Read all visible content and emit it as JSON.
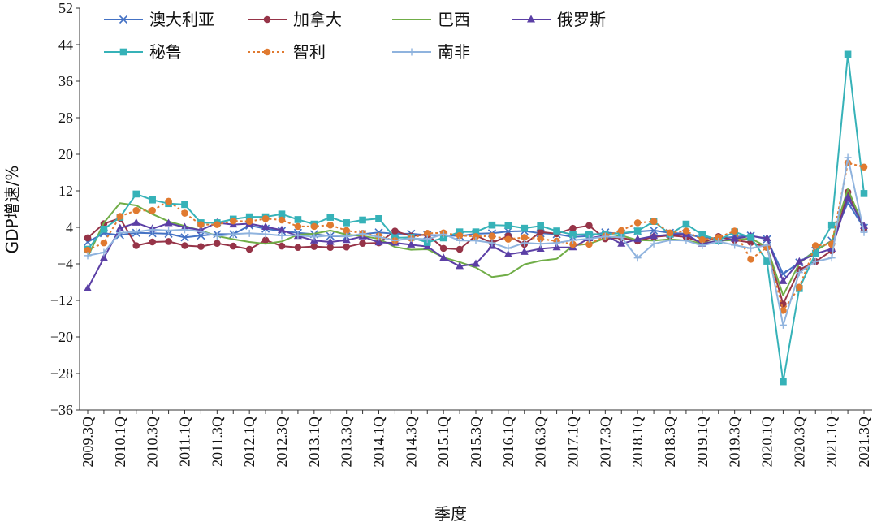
{
  "chart_data": {
    "type": "line",
    "title": "",
    "xlabel": "季度",
    "ylabel": "GDP增速/%",
    "ylim": [
      -36,
      52
    ],
    "yticks": [
      52,
      44,
      36,
      28,
      20,
      12,
      4,
      -4,
      -12,
      -20,
      -28,
      -36
    ],
    "ytick_labels": [
      "52",
      "44",
      "36",
      "28",
      "20",
      "12",
      "4",
      "−4",
      "−12",
      "−20",
      "−28",
      "−36"
    ],
    "x": [
      "2009.3Q",
      "2009.4Q",
      "2010.1Q",
      "2010.2Q",
      "2010.3Q",
      "2010.4Q",
      "2011.1Q",
      "2011.2Q",
      "2011.3Q",
      "2011.4Q",
      "2012.1Q",
      "2012.2Q",
      "2012.3Q",
      "2012.4Q",
      "2013.1Q",
      "2013.2Q",
      "2013.3Q",
      "2013.4Q",
      "2014.1Q",
      "2014.2Q",
      "2014.3Q",
      "2014.4Q",
      "2015.1Q",
      "2015.2Q",
      "2015.3Q",
      "2015.4Q",
      "2016.1Q",
      "2016.2Q",
      "2016.3Q",
      "2016.4Q",
      "2017.1Q",
      "2017.2Q",
      "2017.3Q",
      "2017.4Q",
      "2018.1Q",
      "2018.2Q",
      "2018.3Q",
      "2018.4Q",
      "2019.1Q",
      "2019.2Q",
      "2019.3Q",
      "2019.4Q",
      "2020.1Q",
      "2020.2Q",
      "2020.3Q",
      "2020.4Q",
      "2021.1Q",
      "2021.2Q",
      "2021.3Q"
    ],
    "xtick_labels": [
      "2009.3Q",
      "2010.1Q",
      "2010.3Q",
      "2011.1Q",
      "2011.3Q",
      "2012.1Q",
      "2012.3Q",
      "2013.1Q",
      "2013.3Q",
      "2014.1Q",
      "2014.3Q",
      "2015.1Q",
      "2015.3Q",
      "2016.1Q",
      "2016.3Q",
      "2017.1Q",
      "2017.3Q",
      "2018.1Q",
      "2018.3Q",
      "2019.1Q",
      "2019.3Q",
      "2020.1Q",
      "2020.3Q",
      "2021.1Q",
      "2021.3Q"
    ],
    "legend": {
      "placement": "top-left",
      "columns": 4
    },
    "grid": false,
    "series": [
      {
        "name": "澳大利亚",
        "color": "#4472c4",
        "marker": "x",
        "dash": "solid",
        "values": [
          0.8,
          2.7,
          2.3,
          2.8,
          2.7,
          2.6,
          1.8,
          2.2,
          2.5,
          2.5,
          4.4,
          3.7,
          3.2,
          2.8,
          2.5,
          2.1,
          2.0,
          2.5,
          2.9,
          2.6,
          2.6,
          2.3,
          2.3,
          2.1,
          2.6,
          2.7,
          3.1,
          3.2,
          2.7,
          2.5,
          1.9,
          2.1,
          2.9,
          2.6,
          3.1,
          3.3,
          2.8,
          2.6,
          1.7,
          1.6,
          1.9,
          2.2,
          1.4,
          -6.2,
          -3.7,
          -1.1,
          1.1,
          9.4,
          3.9
        ]
      },
      {
        "name": "加拿大",
        "color": "#963448",
        "marker": "circle",
        "dash": "solid",
        "values": [
          1.7,
          4.8,
          6.0,
          0.0,
          0.8,
          0.9,
          0.0,
          -0.2,
          0.5,
          -0.1,
          -0.8,
          1.2,
          -0.1,
          -0.4,
          -0.2,
          -0.4,
          -0.3,
          0.5,
          0.6,
          3.2,
          2.1,
          2.4,
          -0.6,
          -0.8,
          2.2,
          0.6,
          2.1,
          0.3,
          3.0,
          2.6,
          3.8,
          4.4,
          1.5,
          1.7,
          1.0,
          1.9,
          2.2,
          1.9,
          0.6,
          2.0,
          1.2,
          0.7,
          -0.4,
          -12.8,
          -5.3,
          -3.5,
          -1.1,
          11.7,
          3.8
        ]
      },
      {
        "name": "巴西",
        "color": "#70ad47",
        "marker": "none",
        "dash": "solid",
        "values": [
          -2.5,
          5.0,
          9.3,
          8.8,
          6.9,
          5.3,
          4.3,
          3.3,
          2.1,
          1.4,
          0.8,
          0.4,
          0.9,
          2.4,
          2.6,
          3.3,
          2.4,
          2.1,
          1.5,
          -0.3,
          -0.9,
          -0.8,
          -2.6,
          -3.6,
          -4.8,
          -6.9,
          -6.4,
          -4.1,
          -3.3,
          -2.9,
          0.0,
          0.4,
          1.6,
          2.2,
          1.2,
          1.1,
          1.4,
          1.1,
          0.5,
          1.1,
          1.2,
          1.6,
          -0.3,
          -10.9,
          -3.9,
          -1.1,
          1.0,
          12.4,
          4.0
        ]
      },
      {
        "name": "俄罗斯",
        "color": "#5b3fa5",
        "marker": "triangle",
        "dash": "solid",
        "values": [
          -9.4,
          -2.7,
          3.8,
          5.0,
          3.7,
          4.9,
          4.0,
          3.4,
          5.0,
          4.6,
          4.8,
          4.1,
          3.4,
          2.1,
          1.1,
          0.8,
          1.2,
          2.0,
          0.7,
          0.6,
          0.2,
          -0.2,
          -2.7,
          -4.5,
          -4.0,
          -0.1,
          -1.9,
          -1.4,
          -0.7,
          -0.4,
          -0.4,
          1.6,
          2.2,
          0.4,
          1.4,
          2.1,
          2.4,
          2.5,
          0.4,
          1.1,
          1.5,
          2.1,
          1.6,
          -7.8,
          -3.5,
          -1.8,
          -0.7,
          10.5,
          4.3
        ]
      },
      {
        "name": "秘鲁",
        "color": "#36b2b8",
        "marker": "square",
        "dash": "solid",
        "values": [
          -0.8,
          3.6,
          6.2,
          11.3,
          10.0,
          9.2,
          9.0,
          5.0,
          5.0,
          5.8,
          6.3,
          6.3,
          6.9,
          5.7,
          4.7,
          6.2,
          5.0,
          5.6,
          5.9,
          1.7,
          1.8,
          0.7,
          1.7,
          3.0,
          3.0,
          4.5,
          4.4,
          3.8,
          4.3,
          3.2,
          2.4,
          2.5,
          2.5,
          2.7,
          3.2,
          5.3,
          2.5,
          4.7,
          2.4,
          1.2,
          3.0,
          1.8,
          -3.4,
          -29.8,
          -9.4,
          -1.7,
          4.5,
          41.9,
          11.4
        ]
      },
      {
        "name": "智利",
        "color": "#e07a30",
        "marker": "circle",
        "dash": "dotted",
        "values": [
          -1.0,
          0.6,
          6.4,
          7.7,
          7.7,
          9.7,
          7.1,
          4.6,
          4.6,
          5.4,
          5.3,
          5.9,
          5.6,
          4.2,
          4.2,
          4.5,
          3.3,
          2.7,
          2.1,
          1.1,
          1.6,
          2.7,
          2.8,
          2.2,
          2.0,
          2.1,
          1.4,
          1.8,
          1.5,
          1.0,
          0.3,
          0.3,
          2.1,
          3.3,
          5.0,
          5.3,
          2.8,
          3.2,
          1.3,
          1.8,
          3.2,
          -3.0,
          -0.4,
          -14.2,
          -9.1,
          0.0,
          0.3,
          18.1,
          17.2
        ]
      },
      {
        "name": "南非",
        "color": "#8fb3de",
        "marker": "plus",
        "dash": "solid",
        "values": [
          -2.2,
          -1.5,
          2.8,
          3.0,
          3.5,
          3.3,
          3.5,
          3.1,
          2.1,
          2.5,
          2.7,
          2.5,
          2.2,
          2.3,
          1.9,
          2.2,
          2.0,
          2.6,
          1.9,
          1.1,
          1.6,
          1.4,
          2.5,
          1.1,
          1.1,
          0.6,
          -0.6,
          0.6,
          0.4,
          0.6,
          1.2,
          1.5,
          2.0,
          1.8,
          -2.7,
          0.4,
          1.2,
          1.1,
          0.0,
          0.9,
          0.1,
          -0.6,
          0.1,
          -17.4,
          -5.9,
          -3.5,
          -2.7,
          19.3,
          2.9
        ]
      }
    ]
  }
}
